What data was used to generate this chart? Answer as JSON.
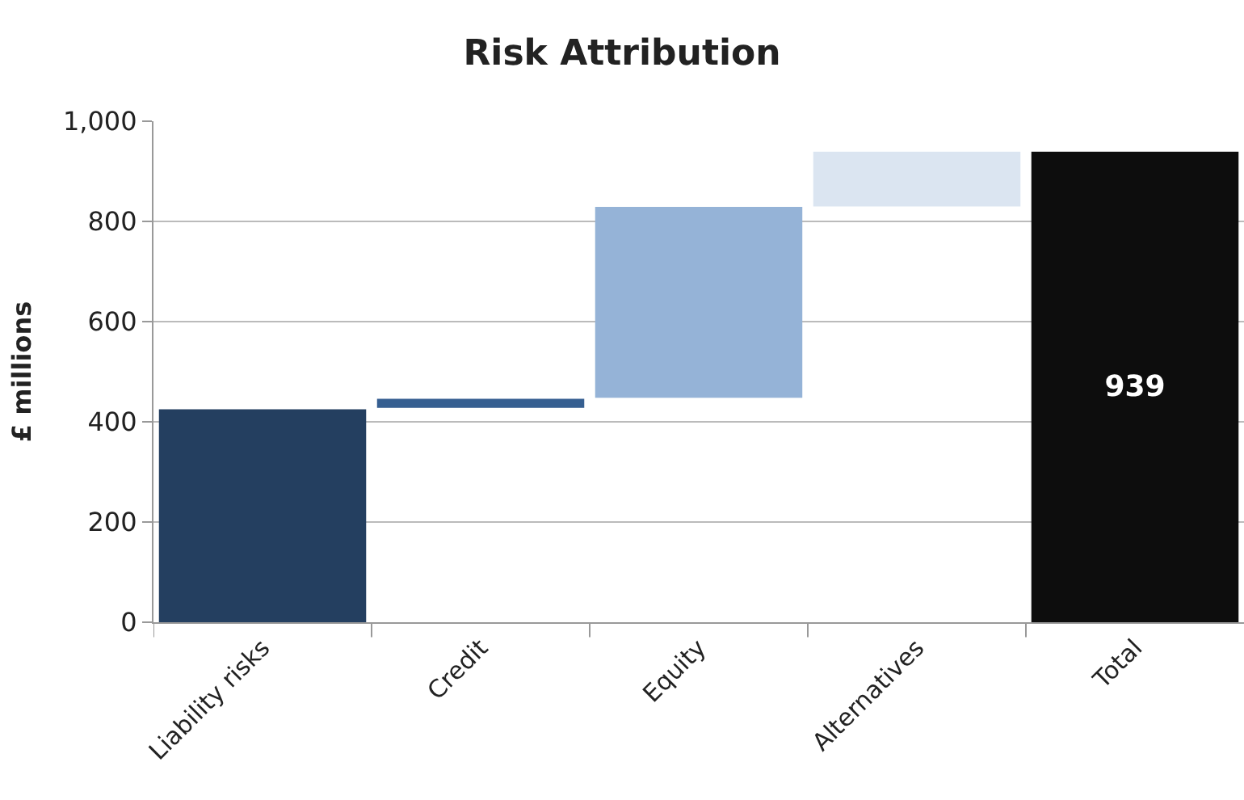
{
  "chart_data": {
    "type": "bar",
    "title": "Risk Attribution",
    "ylabel": "£ millions",
    "categories": [
      "Liability risks",
      "Credit",
      "Equity",
      "Alternatives",
      "Total"
    ],
    "values": [
      425,
      18,
      381,
      109,
      939
    ],
    "base": [
      0,
      428,
      448,
      830,
      0
    ],
    "colors": [
      "#243f60",
      "#365f91",
      "#95b3d7",
      "#dbe5f1",
      "#0d0d0d"
    ],
    "value_labels": [
      null,
      null,
      null,
      null,
      "939"
    ],
    "ylim": [
      0,
      1000
    ],
    "yticks": [
      0,
      200,
      400,
      600,
      800,
      {
        "value": 1000,
        "label": "1,000"
      }
    ],
    "grid": "y"
  }
}
